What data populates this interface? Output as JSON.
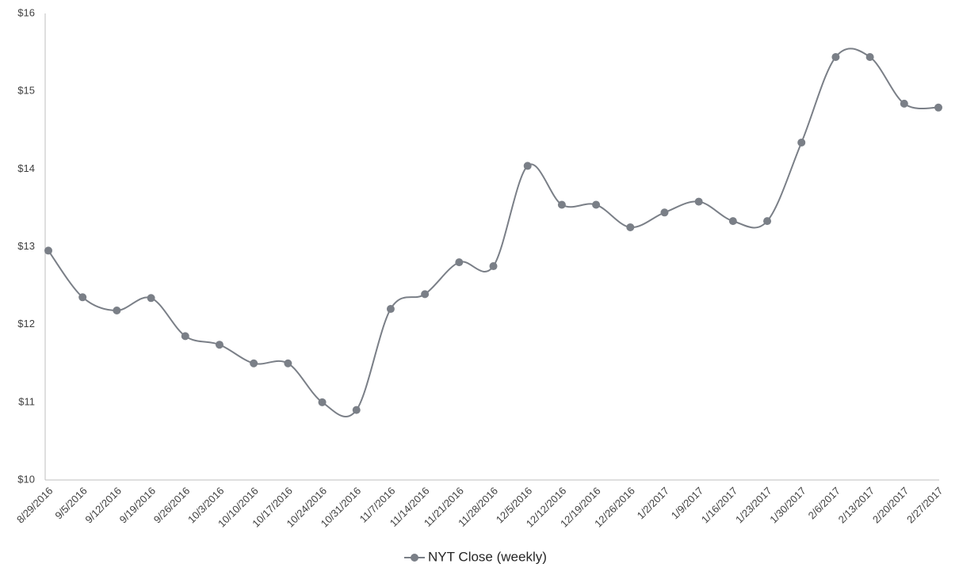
{
  "chart_data": {
    "type": "line",
    "categories": [
      "8/29/2016",
      "9/5/2016",
      "9/12/2016",
      "9/19/2016",
      "9/26/2016",
      "10/3/2016",
      "10/10/2016",
      "10/17/2016",
      "10/24/2016",
      "10/31/2016",
      "11/7/2016",
      "11/14/2016",
      "11/21/2016",
      "11/28/2016",
      "12/5/2016",
      "12/12/2016",
      "12/19/2016",
      "12/26/2016",
      "1/2/2017",
      "1/9/2017",
      "1/16/2017",
      "1/23/2017",
      "1/30/2017",
      "2/6/2017",
      "2/13/2017",
      "2/20/2017",
      "2/27/2017"
    ],
    "series": [
      {
        "name": "NYT Close (weekly)",
        "color": "#7a7f87",
        "values": [
          12.95,
          12.35,
          12.18,
          12.34,
          11.85,
          11.74,
          11.5,
          11.5,
          11.0,
          10.9,
          12.2,
          12.39,
          12.8,
          12.75,
          14.04,
          13.54,
          13.54,
          13.25,
          13.44,
          13.58,
          13.33,
          13.33,
          14.34,
          15.44,
          15.44,
          14.84,
          14.79
        ]
      }
    ],
    "ylim": [
      10,
      16
    ],
    "yticks": [
      {
        "value": 10,
        "label": "$10"
      },
      {
        "value": 11,
        "label": "$11"
      },
      {
        "value": 12,
        "label": "$12"
      },
      {
        "value": 13,
        "label": "$13"
      },
      {
        "value": 14,
        "label": "$14"
      },
      {
        "value": 15,
        "label": "$15"
      },
      {
        "value": 16,
        "label": "$16"
      }
    ],
    "grid": false,
    "smooth": true,
    "legend": "bottom"
  }
}
